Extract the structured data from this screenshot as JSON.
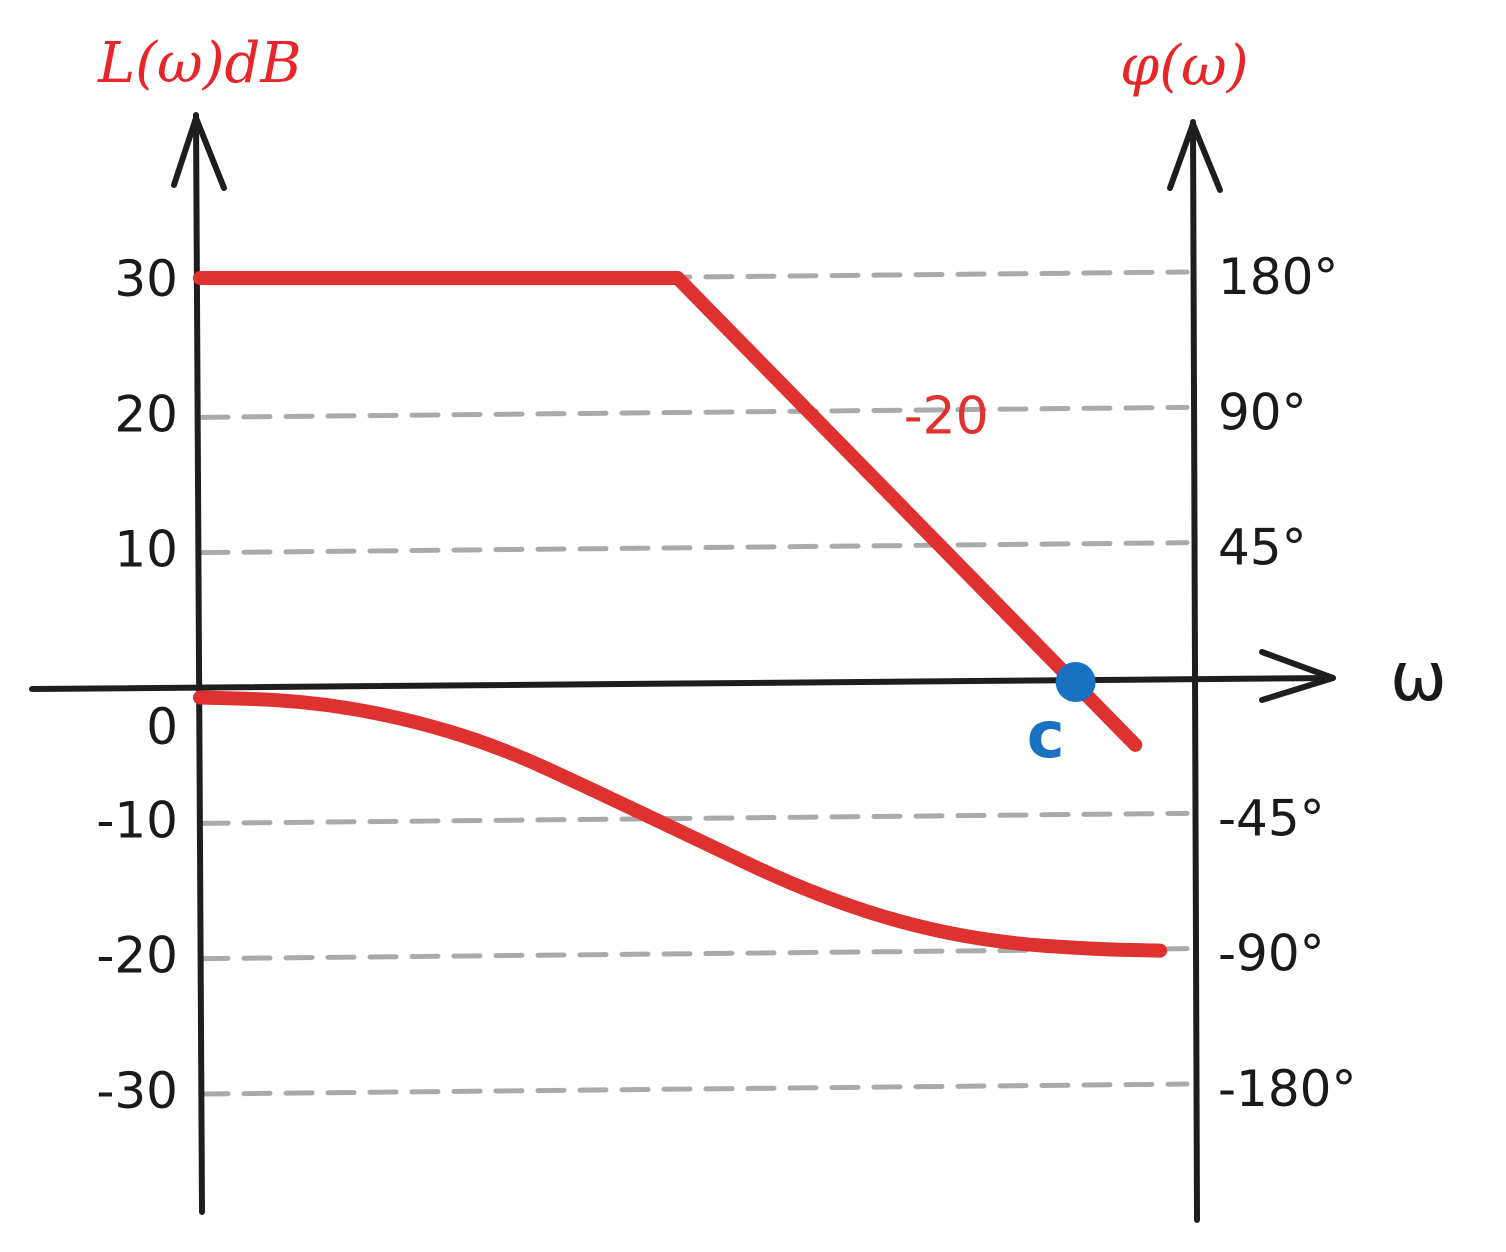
{
  "chart_data": {
    "type": "line",
    "left_axis_label": "L(ω)dB",
    "right_axis_label": "φ(ω)",
    "x_axis_label": "ω",
    "left_ticks": [
      {
        "value": 30,
        "label": "30"
      },
      {
        "value": 20,
        "label": "20"
      },
      {
        "value": 10,
        "label": "10"
      },
      {
        "value": 0,
        "label": "0"
      },
      {
        "value": -10,
        "label": "-10"
      },
      {
        "value": -20,
        "label": "-20"
      },
      {
        "value": -30,
        "label": "-30"
      }
    ],
    "right_ticks": [
      {
        "value": 180,
        "label": "180°"
      },
      {
        "value": 90,
        "label": "90°"
      },
      {
        "value": 45,
        "label": "45°"
      },
      {
        "value": -45,
        "label": "-45°"
      },
      {
        "value": -90,
        "label": "-90°"
      },
      {
        "value": -180,
        "label": "-180°"
      }
    ],
    "grid_levels": [
      30,
      20,
      10,
      -10,
      -20,
      -30
    ],
    "ylim": [
      -38,
      42
    ],
    "xlim": [
      0,
      10
    ],
    "series": [
      {
        "id": "magnitude",
        "color": "#e03131",
        "points": [
          [
            0,
            30
          ],
          [
            4.8,
            30
          ],
          [
            9.4,
            -4.5
          ]
        ]
      },
      {
        "id": "phase",
        "color": "#e03131",
        "points": [
          [
            0,
            -1
          ],
          [
            1,
            -1.2
          ],
          [
            2,
            -2.4
          ],
          [
            3,
            -4.6
          ],
          [
            4,
            -8
          ],
          [
            5,
            -11.5
          ],
          [
            6,
            -15
          ],
          [
            7,
            -17.6
          ],
          [
            8,
            -19.1
          ],
          [
            9,
            -19.6
          ],
          [
            9.65,
            -19.7
          ]
        ]
      }
    ],
    "annotations": [
      {
        "id": "slope-label",
        "text": "-20",
        "x": 7.5,
        "y": 20,
        "color": "#e03131"
      },
      {
        "id": "crossover-label",
        "text": "c",
        "x": 8.5,
        "y": -3.9,
        "color": "#1971c2"
      }
    ],
    "crossover_point": {
      "x": 8.8,
      "y": 0,
      "color": "#1971c2"
    },
    "axis_color": "#1e1e1e",
    "grid_color": "#aaaaaa"
  }
}
